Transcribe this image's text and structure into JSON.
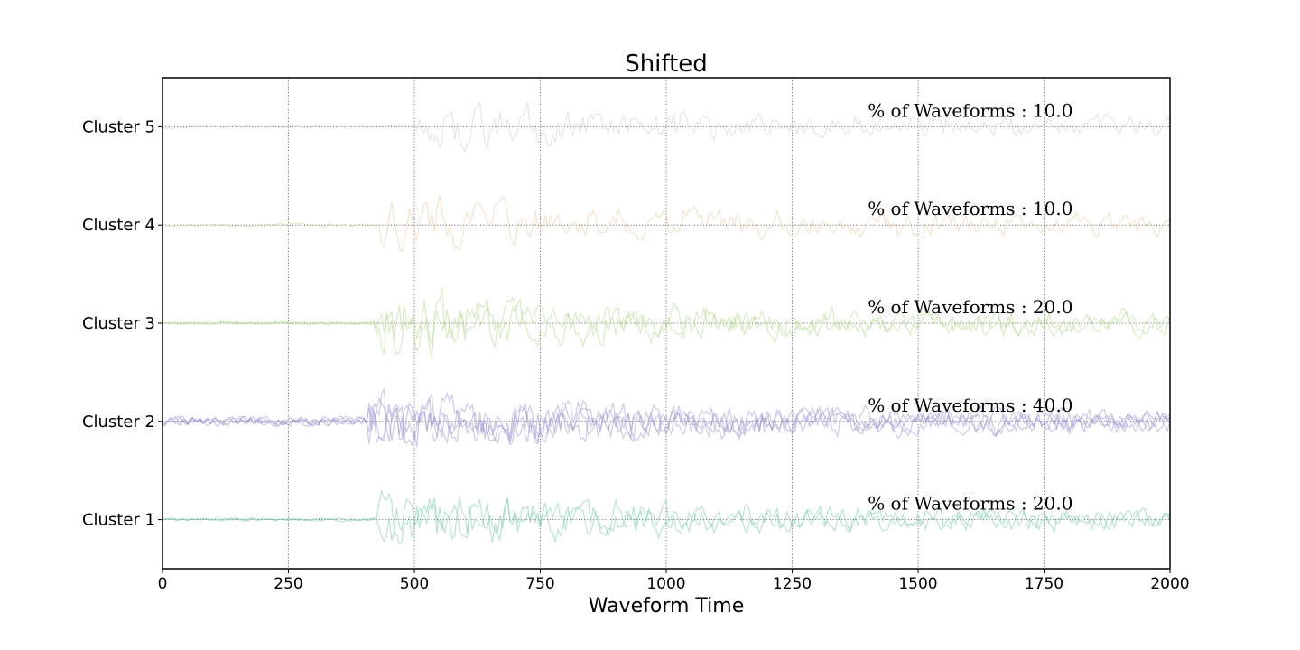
{
  "chart_data": {
    "type": "line",
    "title": "Shifted",
    "xlabel": "Waveform Time",
    "ylabel": "",
    "xlim": [
      0,
      2000
    ],
    "x_ticks": [
      0,
      250,
      500,
      750,
      1000,
      1250,
      1500,
      1750,
      2000
    ],
    "grid": "dotted",
    "annotation_prefix": "% of Waveforms : ",
    "clusters": [
      {
        "label": "Cluster 1",
        "percent": "20.0",
        "color": "#66c2a5",
        "onset": 430,
        "amp": 0.32,
        "n_lines": 2,
        "seed": 11
      },
      {
        "label": "Cluster 2",
        "percent": "40.0",
        "color": "#8d8ccb",
        "onset": 410,
        "amp": 0.34,
        "n_lines": 4,
        "seed": 23
      },
      {
        "label": "Cluster 3",
        "percent": "20.0",
        "color": "#a6d57f",
        "onset": 425,
        "amp": 0.36,
        "n_lines": 2,
        "seed": 37
      },
      {
        "label": "Cluster 4",
        "percent": "10.0",
        "color": "#e5c494",
        "onset": 435,
        "amp": 0.34,
        "n_lines": 1,
        "seed": 41
      },
      {
        "label": "Cluster 5",
        "percent": "10.0",
        "color": "#c8c8c8",
        "onset": 500,
        "amp": 0.3,
        "n_lines": 1,
        "seed": 53
      }
    ]
  }
}
